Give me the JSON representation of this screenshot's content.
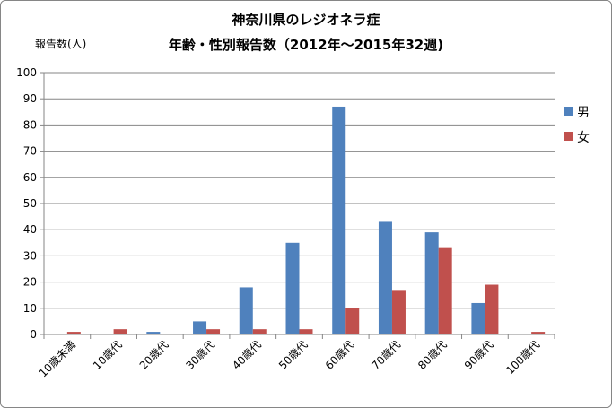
{
  "chart_data": {
    "type": "bar",
    "title": [
      "神奈川県のレジオネラ症",
      "年齢・性別報告数（2012年～2015年32週)"
    ],
    "ylabel": "報告数(人)",
    "xlabel": "",
    "ylim": [
      0,
      100
    ],
    "yticks": [
      0,
      10,
      20,
      30,
      40,
      50,
      60,
      70,
      80,
      90,
      100
    ],
    "grid": true,
    "legend_position": "right",
    "categories": [
      "10歳未満",
      "10歳代",
      "20歳代",
      "30歳代",
      "40歳代",
      "50歳代",
      "60歳代",
      "70歳代",
      "80歳代",
      "90歳代",
      "100歳代"
    ],
    "series": [
      {
        "name": "男",
        "color": "#4F81BD",
        "values": [
          0,
          0,
          1,
          5,
          18,
          35,
          87,
          43,
          39,
          12,
          0
        ]
      },
      {
        "name": "女",
        "color": "#C0504D",
        "values": [
          1,
          2,
          0,
          2,
          2,
          2,
          10,
          17,
          33,
          19,
          1
        ]
      }
    ]
  }
}
